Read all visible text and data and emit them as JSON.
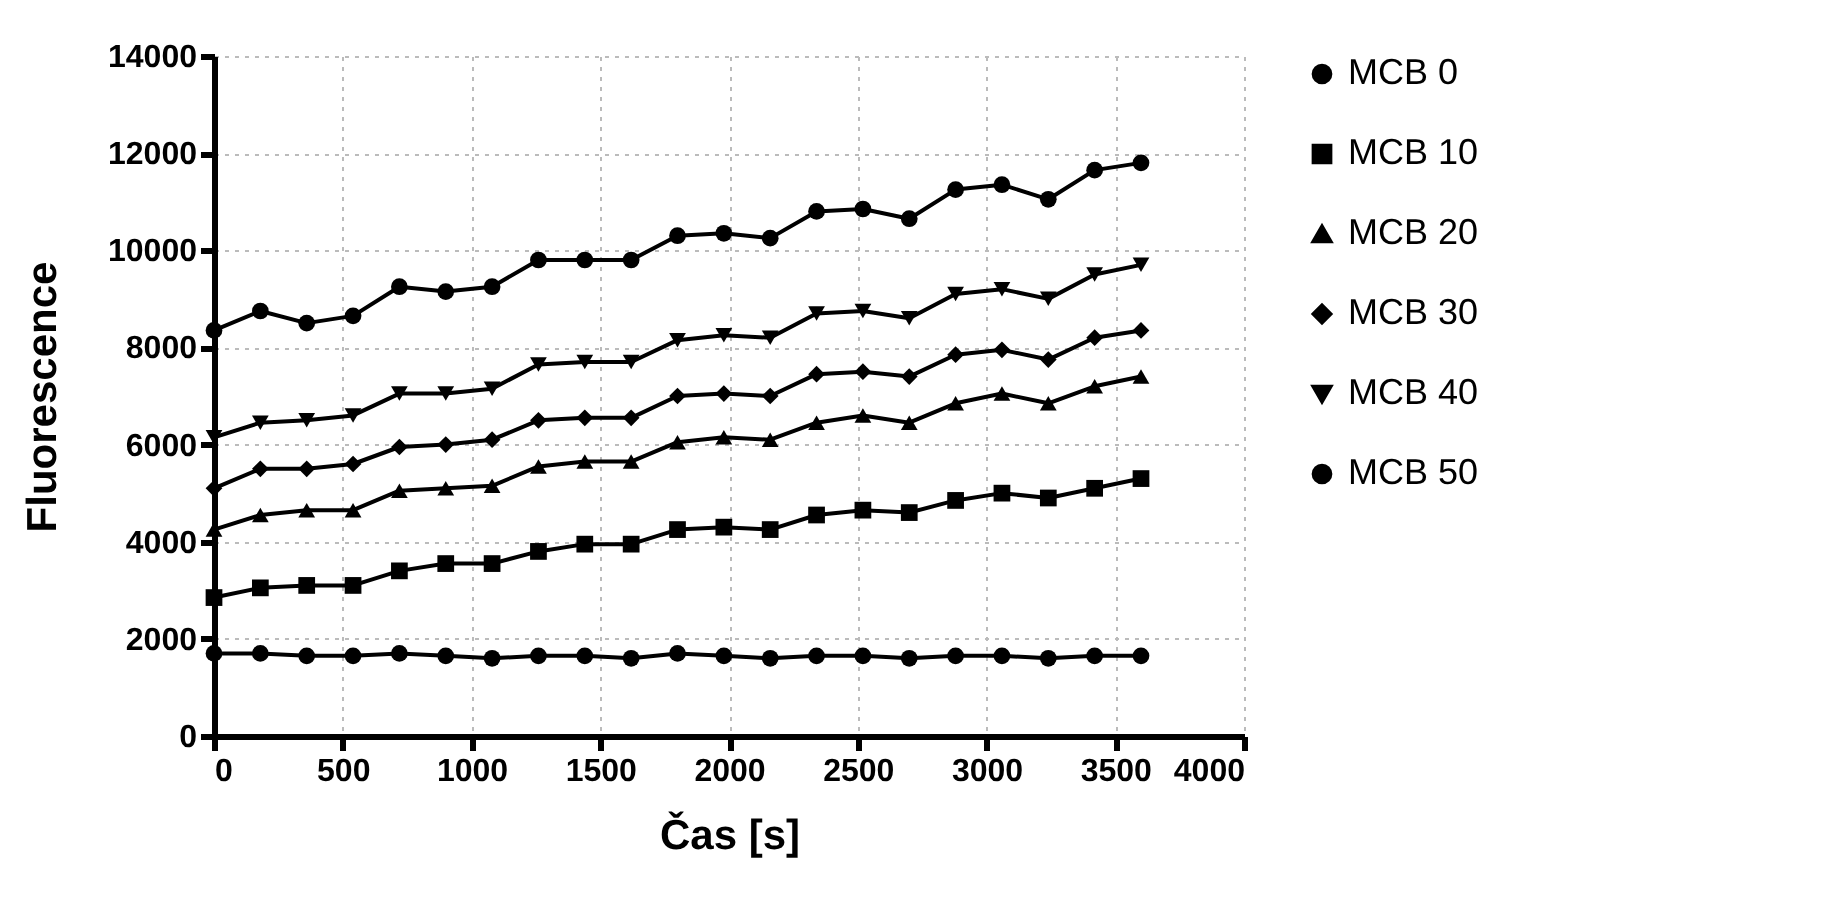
{
  "chart_data": {
    "type": "line",
    "xlabel": "Čas [s]",
    "ylabel": "Fluorescence",
    "x": [
      0,
      180,
      360,
      540,
      720,
      900,
      1080,
      1260,
      1440,
      1620,
      1800,
      1980,
      2160,
      2340,
      2520,
      2700,
      2880,
      3060,
      3240,
      3420,
      3600
    ],
    "xlim": [
      0,
      4000
    ],
    "xticks": [
      0,
      500,
      1000,
      1500,
      2000,
      2500,
      3000,
      3500,
      4000
    ],
    "ylim": [
      0,
      14000
    ],
    "yticks": [
      0,
      2000,
      4000,
      6000,
      8000,
      10000,
      12000,
      14000
    ],
    "grid": true,
    "legend": "right",
    "line_style": "solid",
    "series": [
      {
        "name": "MCB 0",
        "color": "#000000",
        "marker": "circle",
        "values": [
          1700,
          1700,
          1650,
          1650,
          1700,
          1650,
          1600,
          1650,
          1650,
          1600,
          1700,
          1650,
          1600,
          1650,
          1650,
          1600,
          1650,
          1650,
          1600,
          1650,
          1650
        ]
      },
      {
        "name": "MCB 10",
        "color": "#000000",
        "marker": "square",
        "values": [
          2850,
          3050,
          3100,
          3100,
          3400,
          3550,
          3550,
          3800,
          3950,
          3950,
          4250,
          4300,
          4250,
          4550,
          4650,
          4600,
          4850,
          5000,
          4900,
          5100,
          5300
        ]
      },
      {
        "name": "MCB 20",
        "color": "#000000",
        "marker": "triangle",
        "values": [
          4250,
          4550,
          4650,
          4650,
          5050,
          5100,
          5150,
          5550,
          5650,
          5650,
          6050,
          6150,
          6100,
          6450,
          6600,
          6450,
          6850,
          7050,
          6850,
          7200,
          7400
        ]
      },
      {
        "name": "MCB 30",
        "color": "#000000",
        "marker": "diamond",
        "values": [
          5100,
          5500,
          5500,
          5600,
          5950,
          6000,
          6100,
          6500,
          6550,
          6550,
          7000,
          7050,
          7000,
          7450,
          7500,
          7400,
          7850,
          7950,
          7750,
          8200,
          8350
        ]
      },
      {
        "name": "MCB 40",
        "color": "#000000",
        "marker": "triangle-down",
        "values": [
          6150,
          6450,
          6500,
          6600,
          7050,
          7050,
          7150,
          7650,
          7700,
          7700,
          8150,
          8250,
          8200,
          8700,
          8750,
          8600,
          9100,
          9200,
          9000,
          9500,
          9700
        ]
      },
      {
        "name": "MCB 50",
        "color": "#000000",
        "marker": "circle",
        "values": [
          8350,
          8750,
          8500,
          8650,
          9250,
          9150,
          9250,
          9800,
          9800,
          9800,
          10300,
          10350,
          10250,
          10800,
          10850,
          10650,
          11250,
          11350,
          11050,
          11650,
          11800
        ]
      }
    ]
  }
}
